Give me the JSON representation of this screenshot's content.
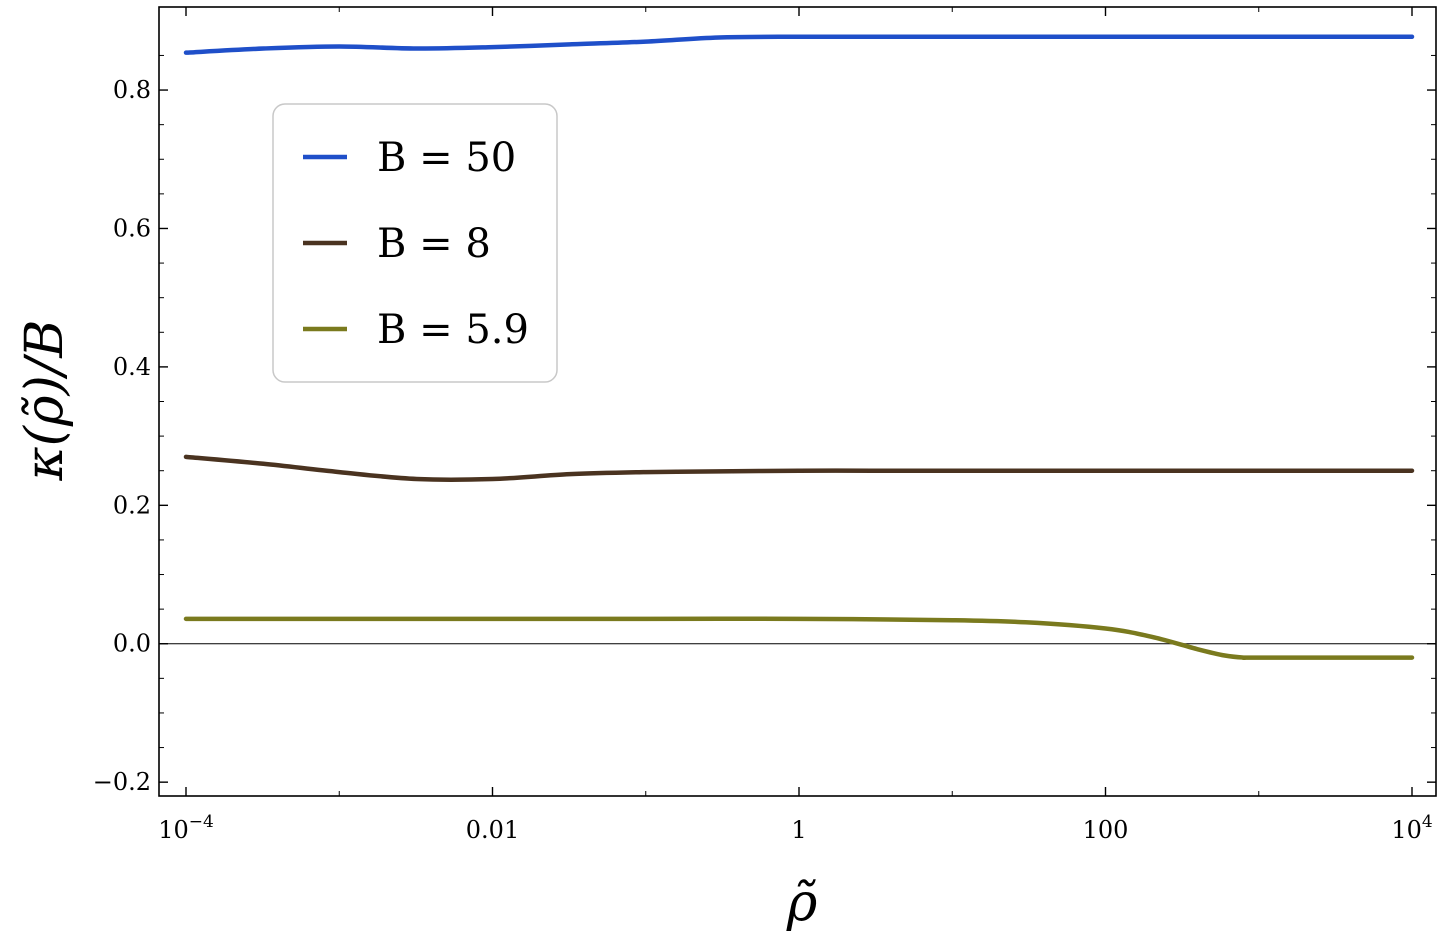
{
  "chart_data": {
    "type": "line",
    "xscale": "log",
    "xlim": [
      0.0001,
      10000
    ],
    "ylim": [
      -0.22,
      0.92
    ],
    "xlabel": "ρ̃",
    "ylabel": "κ(ρ̃)/B",
    "grid": false,
    "legend_position": "upper-left",
    "x_ticks": [
      {
        "value": 0.0001,
        "base": "10",
        "exp": "−4"
      },
      {
        "value": 0.01,
        "label": "0.01"
      },
      {
        "value": 1,
        "label": "1"
      },
      {
        "value": 100,
        "label": "100"
      },
      {
        "value": 10000,
        "base": "10",
        "exp": "4"
      }
    ],
    "y_ticks": [
      {
        "value": -0.2,
        "label": "−0.2"
      },
      {
        "value": 0.0,
        "label": "0.0"
      },
      {
        "value": 0.2,
        "label": "0.2"
      },
      {
        "value": 0.4,
        "label": "0.4"
      },
      {
        "value": 0.6,
        "label": "0.6"
      },
      {
        "value": 0.8,
        "label": "0.8"
      }
    ],
    "reference_line_y": 0,
    "series": [
      {
        "name": "B = 50",
        "color": "#1f4fc9",
        "x": [
          0.0001,
          0.00032,
          0.001,
          0.0032,
          0.01,
          0.032,
          0.1,
          0.3,
          1,
          3,
          10,
          100,
          1000,
          10000
        ],
        "y": [
          0.854,
          0.86,
          0.863,
          0.86,
          0.862,
          0.866,
          0.87,
          0.876,
          0.877,
          0.877,
          0.877,
          0.877,
          0.877,
          0.877
        ]
      },
      {
        "name": "B = 8",
        "color": "#4a3320",
        "x": [
          0.0001,
          0.00032,
          0.001,
          0.0032,
          0.01,
          0.032,
          0.1,
          0.3,
          1,
          3,
          10,
          100,
          1000,
          10000
        ],
        "y": [
          0.27,
          0.26,
          0.248,
          0.238,
          0.238,
          0.245,
          0.248,
          0.249,
          0.25,
          0.25,
          0.25,
          0.25,
          0.25,
          0.25
        ]
      },
      {
        "name": "B = 5.9",
        "color": "#7a7a1e",
        "x": [
          0.0001,
          0.001,
          0.01,
          0.1,
          1,
          10,
          30,
          100,
          200,
          400,
          600,
          800,
          1000,
          10000
        ],
        "y": [
          0.036,
          0.036,
          0.036,
          0.036,
          0.036,
          0.034,
          0.031,
          0.022,
          0.01,
          -0.008,
          -0.017,
          -0.02,
          -0.02,
          -0.02
        ]
      }
    ]
  }
}
